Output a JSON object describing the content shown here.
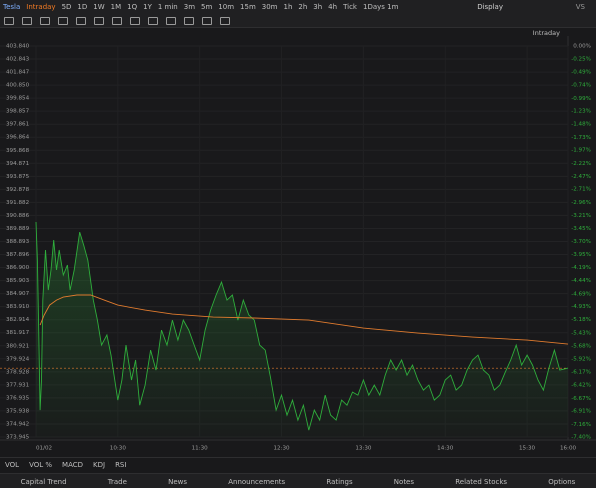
{
  "toolbar": {
    "symbol": "Tesla",
    "periods": [
      "Intraday",
      "5D",
      "1D",
      "1W",
      "1M",
      "1Q",
      "1Y",
      "1 min",
      "3m",
      "5m",
      "10m",
      "15m",
      "30m",
      "1h",
      "2h",
      "3h",
      "4h",
      "Tick",
      "1Days 1m"
    ],
    "selected": "Intraday",
    "display": "Display",
    "compare": "VS"
  },
  "indicators": [
    "VOL",
    "VOL %",
    "MACD",
    "KDJ",
    "RSI"
  ],
  "tabs": [
    "Capital Trend",
    "Trade",
    "News",
    "Announcements",
    "Ratings",
    "Notes",
    "Related Stocks",
    "Options"
  ],
  "chart_data": {
    "type": "line",
    "mode_label": "Intraday",
    "xlim": [
      0,
      390
    ],
    "xticks": [
      {
        "value": 0,
        "label": "01/02"
      },
      {
        "value": 60,
        "label": "10:30"
      },
      {
        "value": 120,
        "label": "11:30"
      },
      {
        "value": 180,
        "label": "12:30"
      },
      {
        "value": 240,
        "label": "13:30"
      },
      {
        "value": 300,
        "label": "14:30"
      },
      {
        "value": 360,
        "label": "15:30"
      },
      {
        "value": 390,
        "label": "16:00"
      }
    ],
    "ylim": [
      373.945,
      403.84
    ],
    "yticks": [
      {
        "value": 403.84,
        "label": "403.840"
      },
      402.843,
      401.847,
      {
        "value": 400.85,
        "label": "400.850"
      },
      399.854,
      398.857,
      397.861,
      396.864,
      395.868,
      394.871,
      393.875,
      392.878,
      391.882,
      390.886,
      389.889,
      388.893,
      387.896,
      {
        "value": 386.9,
        "label": "386.900"
      },
      385.903,
      384.907,
      {
        "value": 383.91,
        "label": "383.910"
      },
      382.914,
      381.917,
      380.921,
      379.924,
      378.928,
      377.931,
      376.935,
      375.938,
      374.942,
      373.945
    ],
    "y2lim": [
      -7.4,
      0
    ],
    "y2ticks": [
      {
        "value": 0,
        "label": "0.00%"
      },
      {
        "value": -0.25,
        "label": "-0.25%"
      },
      {
        "value": -0.49,
        "label": "-0.49%"
      },
      {
        "value": -0.74,
        "label": "-0.74%"
      },
      {
        "value": -0.99,
        "label": "-0.99%"
      },
      {
        "value": -1.23,
        "label": "-1.23%"
      },
      {
        "value": -1.48,
        "label": "-1.48%"
      },
      {
        "value": -1.73,
        "label": "-1.73%"
      },
      {
        "value": -1.97,
        "label": "-1.97%"
      },
      {
        "value": -2.22,
        "label": "-2.22%"
      },
      {
        "value": -2.47,
        "label": "-2.47%"
      },
      {
        "value": -2.71,
        "label": "-2.71%"
      },
      {
        "value": -2.96,
        "label": "-2.96%"
      },
      {
        "value": -3.21,
        "label": "-3.21%"
      },
      {
        "value": -3.45,
        "label": "-3.45%"
      },
      {
        "value": -3.7,
        "label": "-3.70%"
      },
      {
        "value": -3.95,
        "label": "-3.95%"
      },
      {
        "value": -4.19,
        "label": "-4.19%"
      },
      {
        "value": -4.44,
        "label": "-4.44%"
      },
      {
        "value": -4.69,
        "label": "-4.69%"
      },
      {
        "value": -4.93,
        "label": "-4.93%"
      },
      {
        "value": -5.18,
        "label": "-5.18%"
      },
      {
        "value": -5.43,
        "label": "-5.43%"
      },
      {
        "value": -5.68,
        "label": "-5.68%"
      },
      {
        "value": -5.92,
        "label": "-5.92%"
      },
      {
        "value": -6.17,
        "label": "-6.17%"
      },
      {
        "value": -6.42,
        "label": "-6.42%"
      },
      {
        "value": -6.67,
        "label": "-6.67%"
      },
      {
        "value": -6.91,
        "label": "-6.91%"
      },
      {
        "value": -7.16,
        "label": "-7.16%"
      },
      {
        "value": -7.4,
        "label": "-7.40%"
      }
    ],
    "series": [
      {
        "color": "#2fae3c",
        "x": [
          0,
          1,
          2,
          3,
          4,
          5,
          7,
          9,
          11,
          13,
          15,
          17,
          20,
          23,
          25,
          28,
          32,
          35,
          38,
          42,
          45,
          48,
          52,
          55,
          60,
          63,
          66,
          70,
          73,
          76,
          80,
          84,
          88,
          92,
          96,
          100,
          104,
          108,
          112,
          116,
          120,
          124,
          128,
          132,
          136,
          140,
          144,
          148,
          152,
          156,
          160,
          164,
          168,
          172,
          176,
          180,
          184,
          188,
          192,
          196,
          200,
          204,
          208,
          212,
          216,
          220,
          224,
          228,
          232,
          236,
          240,
          244,
          248,
          252,
          256,
          260,
          264,
          268,
          272,
          276,
          280,
          284,
          288,
          292,
          296,
          300,
          304,
          308,
          312,
          316,
          320,
          324,
          328,
          332,
          336,
          340,
          344,
          348,
          352,
          356,
          360,
          364,
          368,
          372,
          376,
          380,
          384,
          390
        ],
        "values": [
          390.38,
          387.47,
          382.12,
          376.0,
          378.3,
          384.41,
          388.24,
          385.18,
          386.71,
          389.0,
          386.71,
          388.24,
          386.33,
          387.09,
          385.18,
          386.71,
          389.61,
          388.62,
          387.47,
          384.41,
          382.88,
          380.97,
          381.74,
          380.21,
          376.77,
          378.3,
          380.97,
          378.3,
          379.83,
          376.38,
          377.91,
          380.59,
          379.06,
          382.12,
          380.97,
          382.88,
          381.35,
          382.88,
          382.12,
          380.97,
          379.83,
          382.12,
          383.65,
          384.8,
          385.79,
          384.41,
          384.8,
          382.88,
          384.41,
          383.27,
          382.88,
          380.97,
          380.59,
          378.45,
          376.0,
          377.15,
          375.62,
          376.77,
          375.24,
          376.38,
          374.47,
          376.0,
          375.24,
          377.15,
          375.62,
          375.24,
          376.77,
          376.38,
          377.38,
          377.15,
          378.3,
          377.15,
          377.91,
          377.15,
          378.68,
          379.83,
          379.06,
          379.83,
          378.68,
          379.44,
          378.3,
          377.53,
          377.91,
          376.77,
          377.15,
          378.3,
          378.68,
          377.53,
          377.91,
          379.06,
          379.83,
          380.21,
          379.06,
          378.68,
          377.53,
          377.91,
          378.91,
          379.83,
          380.97,
          379.44,
          380.21,
          379.44,
          378.3,
          377.53,
          379.21,
          380.59,
          379.06,
          379.21
        ]
      },
      {
        "color": "#e07b2e",
        "x": [
          3,
          6,
          10,
          15,
          20,
          30,
          40,
          50,
          60,
          80,
          100,
          130,
          160,
          200,
          240,
          280,
          320,
          360,
          390
        ],
        "values": [
          382.5,
          383.27,
          384.03,
          384.41,
          384.64,
          384.8,
          384.8,
          384.41,
          384.03,
          383.65,
          383.34,
          383.11,
          383.04,
          382.88,
          382.27,
          381.89,
          381.58,
          381.35,
          381.05
        ]
      }
    ]
  }
}
